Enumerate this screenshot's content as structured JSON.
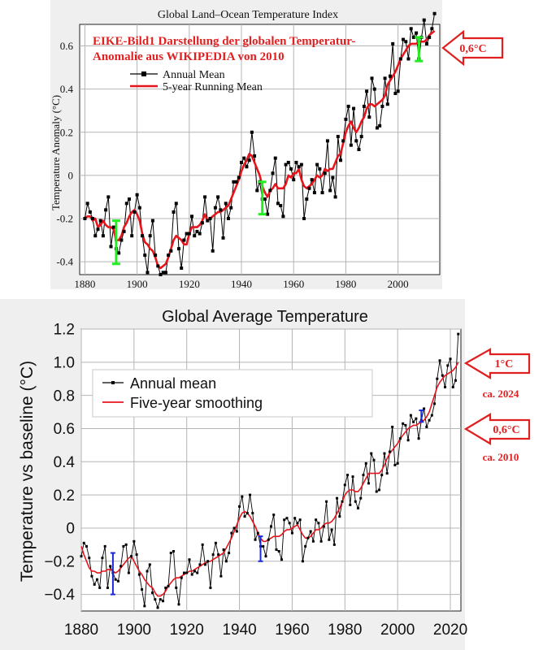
{
  "colors": {
    "annual": "#000000",
    "smooth": "#e8141c",
    "annotation": "#e02020",
    "errorbar_top": "#22ee22",
    "errorbar_bottom": "#1a2bd6",
    "background": "#efefef"
  },
  "chart_data": [
    {
      "type": "line",
      "title": "Global Land–Ocean Temperature Index",
      "xlabel": "",
      "ylabel": "Temperature Anomaly (°C)",
      "xlim": [
        1878,
        2016
      ],
      "ylim": [
        -0.46,
        0.7
      ],
      "x_ticks": [
        1880,
        1900,
        1920,
        1940,
        1960,
        1980,
        2000
      ],
      "y_ticks": [
        -0.4,
        -0.2,
        0,
        0.2,
        0.4,
        0.6
      ],
      "y_tick_labels": [
        "-0.4",
        "-0.2",
        "0",
        "0.2",
        "0.4",
        "0.6"
      ],
      "grid": true,
      "legend": {
        "placement": "top-left",
        "entries": [
          "Annual Mean",
          "5-year Running Mean"
        ]
      },
      "annotation": {
        "text_line1": "EIKE-Bild1 Darstellung der globalen Temperatur-",
        "text_line2": "Anomalie aus WIKIPEDIA von 2010"
      },
      "error_bars": [
        {
          "x": 1892,
          "low": -0.41,
          "high": -0.21
        },
        {
          "x": 1948,
          "low": -0.18,
          "high": -0.03
        },
        {
          "x": 2008,
          "low": 0.53,
          "high": 0.64
        }
      ],
      "callouts": [
        {
          "label": "0,6°C",
          "y": 0.6
        }
      ],
      "series": [
        {
          "name": "Annual Mean",
          "x_start": 1880,
          "values": [
            -0.2,
            -0.13,
            -0.17,
            -0.2,
            -0.28,
            -0.25,
            -0.21,
            -0.28,
            -0.16,
            -0.1,
            -0.33,
            -0.24,
            -0.34,
            -0.36,
            -0.3,
            -0.26,
            -0.13,
            -0.11,
            -0.28,
            -0.17,
            -0.09,
            -0.15,
            -0.28,
            -0.37,
            -0.45,
            -0.28,
            -0.21,
            -0.37,
            -0.42,
            -0.46,
            -0.45,
            -0.45,
            -0.37,
            -0.35,
            -0.17,
            -0.13,
            -0.34,
            -0.43,
            -0.3,
            -0.27,
            -0.27,
            -0.19,
            -0.28,
            -0.26,
            -0.27,
            -0.22,
            -0.1,
            -0.21,
            -0.2,
            -0.35,
            -0.15,
            -0.1,
            -0.16,
            -0.29,
            -0.13,
            -0.2,
            -0.15,
            -0.03,
            -0.03,
            -0.01,
            0.06,
            0.08,
            0.04,
            0.07,
            0.2,
            0.09,
            -0.07,
            -0.03,
            -0.11,
            -0.11,
            -0.18,
            -0.07,
            0.01,
            0.08,
            -0.13,
            -0.14,
            -0.19,
            0.05,
            0.06,
            0.03,
            -0.02,
            0.06,
            0.04,
            0.05,
            -0.2,
            -0.11,
            -0.06,
            -0.02,
            -0.08,
            0.05,
            0.03,
            -0.08,
            0.01,
            0.16,
            -0.07,
            -0.01,
            -0.1,
            0.18,
            0.07,
            0.16,
            0.26,
            0.32,
            0.14,
            0.31,
            0.16,
            0.12,
            0.18,
            0.32,
            0.39,
            0.27,
            0.45,
            0.4,
            0.22,
            0.23,
            0.32,
            0.45,
            0.33,
            0.46,
            0.61,
            0.38,
            0.39,
            0.54,
            0.63,
            0.62,
            0.54,
            0.68,
            0.64,
            0.66,
            0.54,
            0.64,
            0.72,
            0.61,
            0.64,
            0.68,
            0.75
          ]
        },
        {
          "name": "5-year Running Mean",
          "x_start": 1880,
          "values": [
            -0.2,
            -0.19,
            -0.19,
            -0.21,
            -0.2,
            -0.24,
            -0.23,
            -0.21,
            -0.23,
            -0.24,
            -0.24,
            -0.25,
            -0.3,
            -0.3,
            -0.28,
            -0.24,
            -0.22,
            -0.19,
            -0.17,
            -0.16,
            -0.18,
            -0.21,
            -0.27,
            -0.31,
            -0.32,
            -0.34,
            -0.35,
            -0.38,
            -0.42,
            -0.43,
            -0.42,
            -0.41,
            -0.38,
            -0.34,
            -0.3,
            -0.28,
            -0.29,
            -0.3,
            -0.32,
            -0.32,
            -0.27,
            -0.24,
            -0.24,
            -0.24,
            -0.23,
            -0.21,
            -0.18,
            -0.21,
            -0.2,
            -0.19,
            -0.18,
            -0.17,
            -0.17,
            -0.16,
            -0.15,
            -0.14,
            -0.11,
            -0.08,
            -0.05,
            -0.02,
            0.02,
            0.05,
            0.07,
            0.1,
            0.09,
            0.06,
            0.03,
            0.0,
            -0.05,
            -0.08,
            -0.1,
            -0.07,
            -0.06,
            -0.04,
            -0.06,
            -0.06,
            -0.06,
            -0.04,
            0.0,
            -0.01,
            0.01,
            0.01,
            0.03,
            -0.02,
            -0.05,
            -0.06,
            -0.05,
            -0.04,
            -0.02,
            0.0,
            -0.01,
            0.0,
            0.03,
            0.02,
            0.03,
            0.03,
            0.06,
            0.09,
            0.1,
            0.15,
            0.2,
            0.23,
            0.25,
            0.22,
            0.2,
            0.22,
            0.25,
            0.27,
            0.31,
            0.33,
            0.33,
            0.32,
            0.33,
            0.34,
            0.35,
            0.37,
            0.42,
            0.44,
            0.46,
            0.48,
            0.51,
            0.54,
            0.56,
            0.58,
            0.6,
            0.61,
            0.61,
            0.61,
            0.62,
            0.62,
            0.62,
            0.63,
            0.65,
            0.66,
            0.67
          ]
        }
      ]
    },
    {
      "type": "line",
      "title": "Global Average Temperature",
      "xlabel": "",
      "ylabel": "Temperature vs baseline (°C)",
      "xlim": [
        1880,
        2024
      ],
      "ylim": [
        -0.5,
        1.2
      ],
      "x_ticks": [
        1880,
        1900,
        1920,
        1940,
        1960,
        1980,
        2000,
        2020
      ],
      "y_ticks": [
        -0.4,
        -0.2,
        0,
        0.2,
        0.4,
        0.6,
        0.8,
        1.0,
        1.2
      ],
      "y_tick_labels": [
        "−0.4",
        "−0.2",
        "0",
        "0.2",
        "0.4",
        "0.6",
        "0.8",
        "1.0",
        "1.2"
      ],
      "grid": true,
      "legend": {
        "placement": "top-left",
        "entries": [
          "Annual mean",
          "Five-year smoothing"
        ]
      },
      "error_bars": [
        {
          "x": 1892,
          "low": -0.4,
          "high": -0.15
        },
        {
          "x": 1948,
          "low": -0.2,
          "high": -0.05
        },
        {
          "x": 2009,
          "low": 0.64,
          "high": 0.71
        }
      ],
      "callouts": [
        {
          "label": "1°C",
          "sublabel": "ca. 2024",
          "y": 1.0
        },
        {
          "label": "0,6°C",
          "sublabel": "ca. 2010",
          "y": 0.6
        }
      ],
      "series": [
        {
          "name": "Annual mean",
          "x_start": 1880,
          "values": [
            -0.17,
            -0.09,
            -0.11,
            -0.18,
            -0.29,
            -0.34,
            -0.31,
            -0.36,
            -0.18,
            -0.11,
            -0.36,
            -0.23,
            -0.27,
            -0.31,
            -0.32,
            -0.23,
            -0.11,
            -0.1,
            -0.27,
            -0.17,
            -0.08,
            -0.16,
            -0.28,
            -0.37,
            -0.47,
            -0.26,
            -0.22,
            -0.39,
            -0.43,
            -0.48,
            -0.43,
            -0.44,
            -0.36,
            -0.35,
            -0.15,
            -0.14,
            -0.36,
            -0.46,
            -0.3,
            -0.27,
            -0.27,
            -0.19,
            -0.28,
            -0.26,
            -0.27,
            -0.22,
            -0.1,
            -0.22,
            -0.2,
            -0.36,
            -0.16,
            -0.09,
            -0.16,
            -0.29,
            -0.13,
            -0.2,
            -0.15,
            -0.03,
            -0.0,
            -0.02,
            0.13,
            0.19,
            0.07,
            0.09,
            0.2,
            0.09,
            -0.07,
            -0.03,
            -0.11,
            -0.11,
            -0.17,
            -0.07,
            0.01,
            0.08,
            -0.13,
            -0.14,
            -0.19,
            0.05,
            0.06,
            0.03,
            -0.03,
            0.06,
            0.03,
            0.05,
            -0.2,
            -0.11,
            -0.06,
            -0.02,
            -0.08,
            0.05,
            0.03,
            -0.08,
            0.01,
            0.16,
            -0.07,
            -0.01,
            -0.1,
            0.18,
            0.07,
            0.16,
            0.26,
            0.32,
            0.14,
            0.31,
            0.16,
            0.12,
            0.18,
            0.32,
            0.39,
            0.27,
            0.45,
            0.41,
            0.22,
            0.23,
            0.32,
            0.45,
            0.33,
            0.46,
            0.61,
            0.38,
            0.39,
            0.54,
            0.63,
            0.62,
            0.53,
            0.68,
            0.64,
            0.66,
            0.54,
            0.65,
            0.72,
            0.61,
            0.65,
            0.68,
            0.75,
            0.9,
            1.01,
            0.92,
            0.85,
            0.98,
            1.02,
            0.85,
            0.89,
            1.17
          ]
        },
        {
          "name": "Five-year smoothing",
          "x_start": 1880,
          "values": [
            -0.11,
            -0.16,
            -0.2,
            -0.24,
            -0.26,
            -0.26,
            -0.27,
            -0.27,
            -0.26,
            -0.26,
            -0.25,
            -0.25,
            -0.26,
            -0.27,
            -0.26,
            -0.24,
            -0.22,
            -0.2,
            -0.18,
            -0.17,
            -0.2,
            -0.23,
            -0.26,
            -0.28,
            -0.31,
            -0.33,
            -0.35,
            -0.36,
            -0.39,
            -0.41,
            -0.41,
            -0.4,
            -0.38,
            -0.35,
            -0.33,
            -0.31,
            -0.3,
            -0.3,
            -0.29,
            -0.28,
            -0.27,
            -0.26,
            -0.26,
            -0.25,
            -0.24,
            -0.23,
            -0.22,
            -0.21,
            -0.2,
            -0.2,
            -0.19,
            -0.18,
            -0.17,
            -0.16,
            -0.15,
            -0.12,
            -0.09,
            -0.06,
            -0.02,
            0.02,
            0.06,
            0.09,
            0.1,
            0.09,
            0.07,
            0.04,
            0.01,
            -0.03,
            -0.06,
            -0.08,
            -0.08,
            -0.07,
            -0.06,
            -0.05,
            -0.05,
            -0.05,
            -0.04,
            -0.02,
            -0.01,
            -0.01,
            0.0,
            0.01,
            0.02,
            -0.01,
            -0.04,
            -0.06,
            -0.06,
            -0.05,
            -0.03,
            -0.01,
            -0.01,
            0.0,
            0.02,
            0.03,
            0.03,
            0.04,
            0.06,
            0.09,
            0.12,
            0.16,
            0.2,
            0.22,
            0.23,
            0.23,
            0.22,
            0.22,
            0.24,
            0.27,
            0.3,
            0.33,
            0.33,
            0.33,
            0.33,
            0.33,
            0.35,
            0.38,
            0.42,
            0.45,
            0.47,
            0.49,
            0.51,
            0.54,
            0.56,
            0.58,
            0.6,
            0.61,
            0.62,
            0.62,
            0.63,
            0.64,
            0.65,
            0.67,
            0.7,
            0.75,
            0.8,
            0.85,
            0.88,
            0.9,
            0.92,
            0.93,
            0.94,
            0.95,
            0.97,
            1.0
          ]
        }
      ]
    }
  ]
}
